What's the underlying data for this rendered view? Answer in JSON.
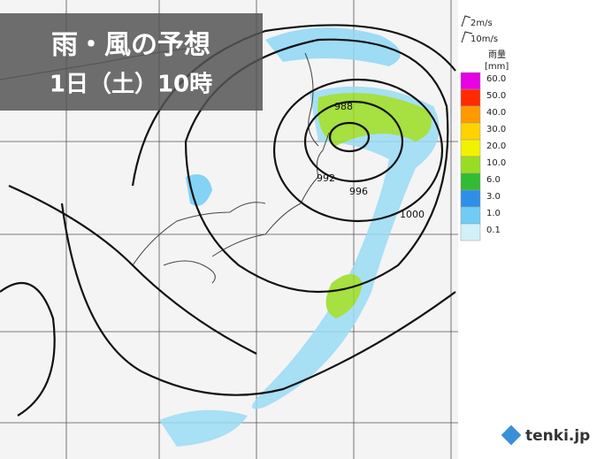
{
  "title": "雨・風の予想",
  "subtitle": "1日（土）10時",
  "wind_legend": [
    "2m/s",
    "10m/s"
  ],
  "rain_legend": {
    "title": "雨量",
    "unit": "[mm]",
    "levels": [
      {
        "label": "60.0",
        "color": "#e600e6"
      },
      {
        "label": "50.0",
        "color": "#ff2a00"
      },
      {
        "label": "40.0",
        "color": "#ff9900"
      },
      {
        "label": "30.0",
        "color": "#ffd200"
      },
      {
        "label": "20.0",
        "color": "#f2f200"
      },
      {
        "label": "10.0",
        "color": "#99dd22"
      },
      {
        "label": "6.0",
        "color": "#33bb33"
      },
      {
        "label": "3.0",
        "color": "#2f8fe8"
      },
      {
        "label": "1.0",
        "color": "#6fcdf5"
      },
      {
        "label": "0.1",
        "color": "#d2f0fa"
      }
    ]
  },
  "isobar_labels": [
    "988",
    "992",
    "996",
    "1000"
  ],
  "logo": "tenki.jp"
}
